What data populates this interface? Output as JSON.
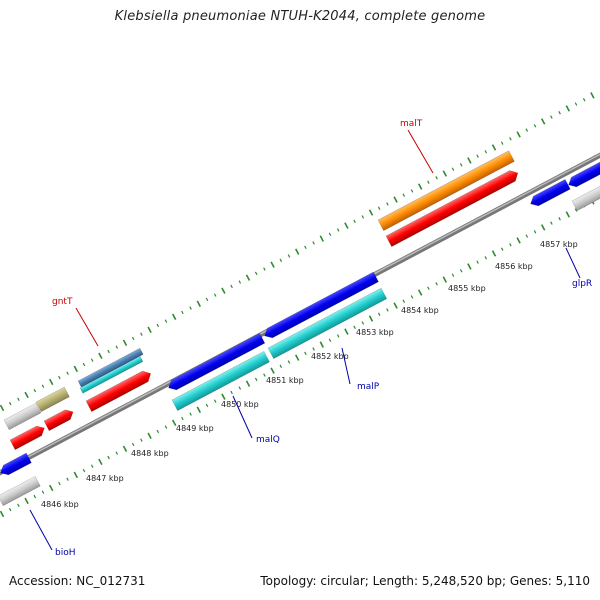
{
  "title": "Klebsiella pneumoniae NTUH-K2044, complete genome",
  "footer": {
    "accession": "Accession: NC_012731",
    "summary": "Topology: circular; Length: 5,248,520 bp; Genes: 5,110"
  },
  "scale_labels": [
    "4846 kbp",
    "4847 kbp",
    "4848 kbp",
    "4849 kbp",
    "4850 kbp",
    "4851 kbp",
    "4852 kbp",
    "4853 kbp",
    "4854 kbp",
    "4855 kbp",
    "4856 kbp",
    "4857 kbp"
  ],
  "gene_labels": {
    "malT": "malT",
    "gntT": "gntT",
    "malP": "malP",
    "malQ": "malQ",
    "glpR": "glpR",
    "bioH": "bioH"
  },
  "colors": {
    "backbone": "#888888",
    "tick": "#2e8b2e",
    "forward_cds": "#ff0000",
    "blue_cds": "#0000ee",
    "cyan_cds": "#22cccc",
    "orange_cds": "#ff8c00",
    "grey_cds": "#c8c8c8",
    "olive_cds": "#b8b070",
    "steel_cds": "#4a7fb0"
  }
}
